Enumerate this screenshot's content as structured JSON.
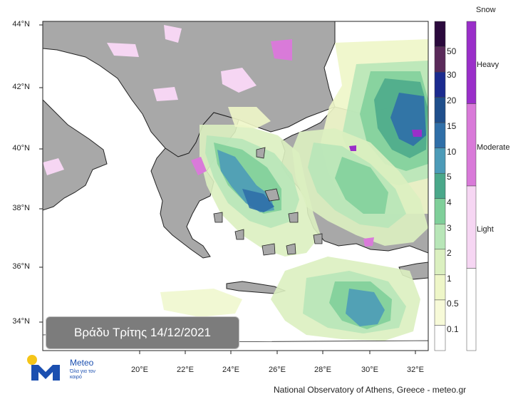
{
  "map": {
    "lat_ticks": [
      "44°N",
      "42°N",
      "40°N",
      "38°N",
      "36°N",
      "34°N"
    ],
    "lon_ticks": [
      "20°E",
      "22°E",
      "24°E",
      "26°E",
      "28°E",
      "30°E",
      "32°E"
    ],
    "date_label": "Βράδυ Τρίτης 14/12/2021",
    "credit": "National Observatory of Athens, Greece - meteo.gr"
  },
  "precip_colorbar": {
    "labels": [
      "50",
      "30",
      "20",
      "15",
      "10",
      "5",
      "4",
      "3",
      "2",
      "1",
      "0.5",
      "0.1"
    ],
    "colors": [
      "#2b0a3d",
      "#5a2a5a",
      "#1b2b8f",
      "#1f4f8c",
      "#2f6fa8",
      "#4c9bb8",
      "#4aa88a",
      "#7fcf9a",
      "#b8e6b8",
      "#dbf0c0",
      "#eef6c8",
      "#f7fad8",
      "#ffffff"
    ]
  },
  "snow_legend": {
    "title": "Snow",
    "levels": [
      "Heavy",
      "Moderate",
      "Light"
    ],
    "colors": [
      "#9a2fc9",
      "#d97ad9",
      "#f6d6f3",
      "#ffffff"
    ]
  },
  "logo": {
    "name": "Meteo",
    "tagline": "Όλα για τον καιρό"
  }
}
